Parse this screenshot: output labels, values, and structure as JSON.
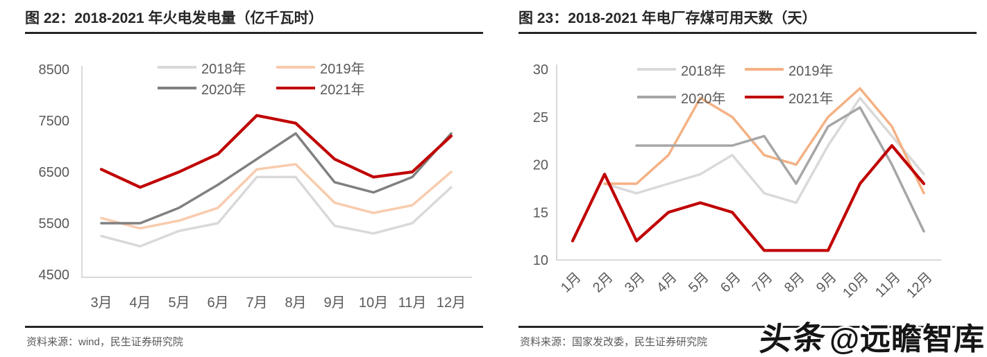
{
  "page": {
    "watermark": {
      "brand": "头条",
      "handle": "@远瞻智库"
    }
  },
  "chart_data": [
    {
      "type": "line",
      "title": "图 22：2018-2021 年火电发电量（亿千瓦时）",
      "categories": [
        "3月",
        "4月",
        "5月",
        "6月",
        "7月",
        "8月",
        "9月",
        "10月",
        "11月",
        "12月"
      ],
      "series": [
        {
          "name": "2018年",
          "color": "#d9d9d9",
          "values": [
            5250,
            5050,
            5350,
            5500,
            6400,
            6400,
            5450,
            5300,
            5500,
            6200
          ]
        },
        {
          "name": "2019年",
          "color": "#f8cbad",
          "values": [
            5600,
            5400,
            5550,
            5800,
            6550,
            6650,
            5900,
            5700,
            5850,
            6500
          ]
        },
        {
          "name": "2020年",
          "color": "#808080",
          "values": [
            5500,
            5500,
            5800,
            6250,
            6750,
            7250,
            6300,
            6100,
            6400,
            7250
          ]
        },
        {
          "name": "2021年",
          "color": "#c00000",
          "values": [
            6550,
            6200,
            6500,
            6850,
            7600,
            7450,
            6750,
            6400,
            6500,
            7200
          ]
        }
      ],
      "ylim": [
        4500,
        8500
      ],
      "yticks": [
        "4500",
        "5500",
        "6500",
        "7500",
        "8500"
      ],
      "xlabel": "",
      "ylabel": "",
      "grid": false,
      "legend_position": "top",
      "source": "资料来源：wind，民生证券研究院"
    },
    {
      "type": "line",
      "title": "图 23：2018-2021 年电厂存煤可用天数（天）",
      "categories": [
        "1月",
        "2月",
        "3月",
        "4月",
        "5月",
        "6月",
        "7月",
        "8月",
        "9月",
        "10月",
        "11月",
        "12月"
      ],
      "series": [
        {
          "name": "2018年",
          "color": "#d9d9d9",
          "values": [
            null,
            18,
            17,
            18,
            19,
            21,
            17,
            16,
            22,
            27,
            23,
            19
          ]
        },
        {
          "name": "2019年",
          "color": "#f4b183",
          "values": [
            null,
            18,
            18,
            21,
            27,
            25,
            21,
            20,
            25,
            28,
            24,
            17
          ]
        },
        {
          "name": "2020年",
          "color": "#a6a6a6",
          "values": [
            null,
            null,
            22,
            22,
            22,
            22,
            23,
            18,
            24,
            26,
            20,
            13
          ]
        },
        {
          "name": "2021年",
          "color": "#c00000",
          "values": [
            12,
            19,
            12,
            15,
            16,
            15,
            11,
            11,
            11,
            18,
            22,
            18
          ]
        }
      ],
      "ylim": [
        10,
        30
      ],
      "yticks": [
        "10",
        "15",
        "20",
        "25",
        "30"
      ],
      "xlabel": "",
      "ylabel": "",
      "grid": false,
      "legend_position": "top",
      "source": "资料来源：国家发改委，民生证券研究院"
    }
  ]
}
